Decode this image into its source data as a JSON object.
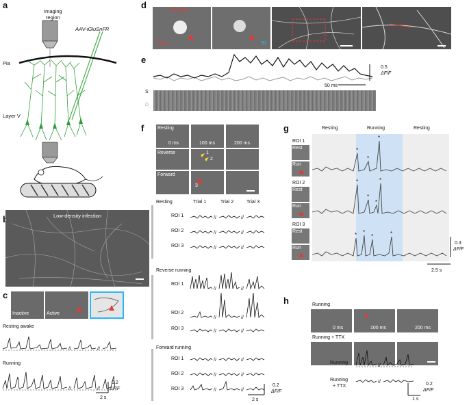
{
  "panels": {
    "a": "a",
    "b": "b",
    "c": "c",
    "d": "d",
    "e": "e",
    "f": "f",
    "g": "g",
    "h": "h"
  },
  "a": {
    "imaging_region": "Imaging\nregion",
    "virus": "AAV-iGluSnFR",
    "pia": "Pia",
    "layer": "Layer V"
  },
  "b": {
    "caption": "Low-density infection"
  },
  "c": {
    "inactive": "Inactive",
    "active": "Active",
    "resting": "Resting awake",
    "running": "Running",
    "scale_value": "0.2",
    "scale_unit": "ΔF/F",
    "time": "2 s"
  },
  "d": {
    "label_top": "Dendrite",
    "label_bottom": "Soma",
    "scale_note": "Bl"
  },
  "e": {
    "scale_value": "0.5",
    "scale_unit": "ΔF/F",
    "time": "50 ms",
    "s_label": "S",
    "d_label": "D"
  },
  "f": {
    "rows": [
      "Resting",
      "Reverse",
      "Forward"
    ],
    "times": [
      "0 ms",
      "100 ms",
      "200 ms"
    ],
    "markers": [
      "1",
      "2",
      "3"
    ],
    "trials": [
      "Trial 1",
      "Trial 2",
      "Trial 3"
    ],
    "sections": [
      "Resting",
      "Reverse running",
      "Forward running"
    ],
    "rois": [
      "ROI 1",
      "ROI 2",
      "ROI 3"
    ],
    "scale_value": "0.2",
    "scale_unit": "ΔF/F",
    "time": "2 s"
  },
  "g": {
    "headers": [
      "Resting",
      "Running",
      "Resting"
    ],
    "rois": [
      "ROI 1",
      "ROI 2",
      "ROI 3"
    ],
    "rest": "Rest",
    "run": "Run",
    "scale_value": "0.3",
    "scale_unit": "ΔF/F",
    "time": "2.5 s"
  },
  "h": {
    "running": "Running",
    "running_ttx": "Running + TTX",
    "times": [
      "0 ms",
      "100 ms",
      "200 ms"
    ],
    "trace_running": "Running",
    "trace_ttx_1": "Running",
    "trace_ttx_2": "+ TTX",
    "scale_value": "0.2",
    "scale_unit": "ΔF/F",
    "time": "1 s"
  }
}
